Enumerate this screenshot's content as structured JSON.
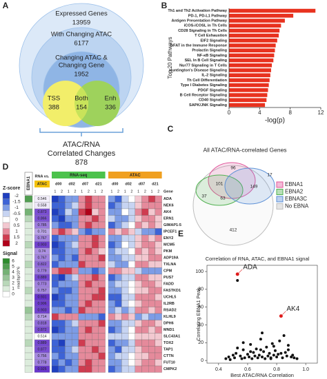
{
  "chart_data": [
    {
      "type": "venn",
      "label": "A",
      "sets": [
        {
          "name": [
            "Expressed Genes"
          ],
          "value": 13959
        },
        {
          "name": [
            "With Changing ATAC"
          ],
          "value": 6177
        },
        {
          "name": [
            "Changing ATAC &",
            "Changing Gene"
          ],
          "value": 1952
        },
        {
          "name": [
            "TSS"
          ],
          "value": 388
        },
        {
          "name": [
            "Both"
          ],
          "value": 154
        },
        {
          "name": [
            "Enh"
          ],
          "value": 336
        }
      ],
      "summary": {
        "name": [
          "ATAC/RNA",
          "Correlated Changes"
        ],
        "value": 878
      },
      "colors": [
        "#dce9f8",
        "#bcd4f1",
        "#8fb5e5",
        "#f2ee6a",
        "#c8e35a",
        "#9ed25c"
      ]
    },
    {
      "type": "bar",
      "orientation": "horizontal",
      "label": "B",
      "categories": [
        "Th1 and Th2 Activation Pathway",
        "PD-1, PD-L1 Pathway",
        "Antigen Presentation Pathway",
        "iCOS-iCOSL in Th Cells",
        "CD28 Signaling in Th Cells",
        "T Cell Exhaustion",
        "EIF2 Signaling",
        "NFAT in the Immune Response",
        "Prolactin Signaling",
        "NF-κB Signaling",
        "SEL In B Cell Signaling",
        "Nur77 Signaling in T Cells",
        "Huntington's Disease Signaling",
        "IL-2 Signaling",
        "Th Cell Differentiation",
        "Type I Diabetes Signaling",
        "PDGF Signaling",
        "B Cell Receptor Signaling",
        "CD40 Signaling",
        "SAPK/JNK Signaling"
      ],
      "values": [
        11.3,
        8.4,
        7.3,
        6.8,
        6.6,
        6.5,
        6.3,
        6.1,
        6.0,
        5.9,
        5.8,
        5.6,
        5.5,
        5.4,
        5.3,
        5.2,
        5.1,
        5.0,
        4.9,
        4.7
      ],
      "color": "#e8321f",
      "xlim": [
        0,
        12
      ],
      "xticks": [
        0,
        4,
        8,
        12
      ],
      "xlabel": "-log(p)",
      "ylabel": "Top 20 Pathways"
    },
    {
      "type": "venn",
      "label": "C",
      "title": "All ATAC/RNA-correlated Genes",
      "regions": [
        96,
        17,
        101,
        149,
        37,
        63,
        412
      ],
      "sets": [
        {
          "name": "EBNA1",
          "color": "#e0559a"
        },
        {
          "name": "EBNA2",
          "color": "#4fb04f"
        },
        {
          "name": "EBNA3C",
          "color": "#5b8fd6"
        },
        {
          "name": "No EBNA",
          "color": "#bdbdbd"
        }
      ]
    },
    {
      "type": "heatmap",
      "label": "D",
      "signal_header": "EBNA1",
      "corr_header": [
        "RNA vs.",
        "ATAC"
      ],
      "groups": [
        "RNA-seq",
        "ATAC"
      ],
      "group_colors": [
        "#4cc24c",
        "#f0a020"
      ],
      "days": [
        "d00",
        "d02",
        "d07",
        "d21"
      ],
      "replicates": [
        "1",
        "2"
      ],
      "gene_header": "Gene",
      "rows": [
        "ADA",
        "NEK6",
        "AK4",
        "ERN1",
        "GIMAP1-5",
        "IPCEF1",
        "ENY2",
        "MCM5",
        "PKM",
        "ADP19A",
        "TXLNA",
        "CPM",
        "PUS7",
        "FADD",
        "FASTKD1",
        "UCHL5",
        "IL2RB",
        "RSAD2",
        "KLHL9",
        "DPH6",
        "MND1",
        "SLC43A1",
        "TOX2",
        "TAP1",
        "CTTN",
        "FUT10",
        "CMPK2"
      ],
      "corr": [
        0.546,
        0.558,
        0.873,
        0.866,
        0.785,
        0.701,
        0.767,
        0.903,
        0.74,
        0.767,
        0.822,
        0.779,
        0.889,
        0.773,
        0.757,
        0.931,
        0.906,
        0.903,
        0.714,
        0.818,
        0.872,
        0.514,
        0.889,
        0.877,
        0.756,
        0.778,
        0.925
      ],
      "signal": [
        5,
        1,
        4,
        2,
        1,
        1,
        1,
        2,
        1,
        1,
        2,
        1,
        1,
        1,
        2,
        1,
        1,
        3,
        2,
        1,
        1,
        1,
        2,
        1,
        1,
        1,
        1
      ],
      "rna": [
        [
          -2,
          -1.5,
          -1,
          -1,
          1,
          1.5,
          1,
          1
        ],
        [
          -1.5,
          -1.5,
          -1,
          -0.5,
          1,
          1.5,
          1,
          1
        ],
        [
          -2,
          -1.5,
          -0.5,
          -1,
          1.5,
          2,
          0.5,
          1
        ],
        [
          -1.5,
          -2,
          -1,
          -1,
          1,
          1,
          1.5,
          1
        ],
        [
          -1,
          -1.5,
          -1.5,
          -1,
          1,
          1.5,
          1,
          1
        ],
        [
          1,
          1.5,
          1,
          0.5,
          -1,
          -1.5,
          -1,
          -1
        ],
        [
          -1.5,
          -1,
          -1,
          -1,
          1,
          1,
          1.5,
          1
        ],
        [
          -2,
          -1.5,
          -1,
          -0.5,
          1,
          1,
          1.5,
          1
        ],
        [
          -1.5,
          -1.5,
          -1,
          -1,
          1,
          1.5,
          1,
          0.5
        ],
        [
          -1,
          -1.5,
          -1,
          -1.5,
          1,
          1,
          1,
          1.5
        ],
        [
          -1.5,
          -1,
          -1,
          -1,
          1.5,
          1,
          1,
          1
        ],
        [
          1,
          1.5,
          1.5,
          1,
          -1,
          -1,
          -1.5,
          -1
        ],
        [
          -1.5,
          -2,
          -1,
          -0.5,
          1,
          1,
          1.5,
          1
        ],
        [
          -1.5,
          -1,
          -1,
          -1,
          1,
          1.5,
          1,
          1
        ],
        [
          -1,
          -1.5,
          -1.5,
          -1,
          1,
          1,
          1,
          1.5
        ],
        [
          -2,
          -1.5,
          -1,
          -1,
          1,
          1,
          1.5,
          1.5
        ],
        [
          -1.5,
          -1.5,
          -1,
          -1,
          1,
          1.5,
          1,
          1
        ],
        [
          -1,
          -1,
          -1.5,
          -1,
          1.5,
          1,
          1,
          1
        ],
        [
          1.5,
          1,
          1,
          1,
          -1,
          -1,
          -1,
          -1.5
        ],
        [
          -1.5,
          -1.5,
          -1,
          -0.5,
          1,
          1,
          1,
          1.5
        ],
        [
          -2,
          -1.5,
          -1,
          -1,
          1,
          1.5,
          1,
          1
        ],
        [
          -1,
          -1,
          -1,
          -1,
          1,
          1,
          1,
          1
        ],
        [
          -1.5,
          -2,
          -1,
          -1,
          1.5,
          1,
          1,
          1
        ],
        [
          -1.5,
          -1.5,
          -1,
          -0.5,
          1,
          1,
          1.5,
          1
        ],
        [
          -1,
          -1.5,
          -1,
          -1,
          1,
          1,
          1,
          1.5
        ],
        [
          -1.5,
          -1,
          -1.5,
          -1,
          1,
          1.5,
          1,
          1
        ],
        [
          -2,
          -1.5,
          -1,
          -1,
          1.5,
          1.5,
          1,
          1
        ]
      ],
      "atac": [
        [
          -1,
          -1.5,
          -0.5,
          0,
          0.5,
          1,
          1.5,
          1
        ],
        [
          -1.5,
          -1,
          -0.5,
          -0.5,
          0.5,
          1,
          1,
          1
        ],
        [
          -1,
          -1,
          0,
          -0.5,
          1,
          1.5,
          0.5,
          1
        ],
        [
          -0.5,
          -1,
          -1,
          -0.5,
          0.5,
          1,
          1,
          0.5
        ],
        [
          -1.5,
          -1,
          -0.5,
          0,
          1,
          0.5,
          1,
          0.5
        ],
        [
          1,
          0.5,
          1,
          0.5,
          -0.5,
          -1,
          -1,
          -1.5
        ],
        [
          -1,
          -1,
          -0.5,
          -0.5,
          0.5,
          1,
          0.5,
          1
        ],
        [
          -1.5,
          -1,
          0,
          -0.5,
          0.5,
          1,
          1,
          0.5
        ],
        [
          -1,
          -0.5,
          -0.5,
          0,
          1,
          0.5,
          1,
          0.5
        ],
        [
          -1,
          -1,
          -0.5,
          -0.5,
          0.5,
          0.5,
          1,
          1
        ],
        [
          -0.5,
          -1,
          -1,
          0,
          1,
          1,
          0.5,
          0.5
        ],
        [
          1,
          1,
          0.5,
          0.5,
          -0.5,
          -1,
          -1,
          -1
        ],
        [
          -1.5,
          -1,
          -0.5,
          -0.5,
          1,
          1,
          0.5,
          0.5
        ],
        [
          -1,
          -0.5,
          -0.5,
          0,
          0.5,
          1,
          1,
          0.5
        ],
        [
          -1,
          -1,
          -0.5,
          0,
          0.5,
          0.5,
          1,
          1
        ],
        [
          -1.5,
          -1.5,
          -0.5,
          -0.5,
          1,
          1,
          1,
          0.5
        ],
        [
          -1,
          -1.5,
          -0.5,
          0,
          0.5,
          1,
          1,
          1
        ],
        [
          -1,
          -0.5,
          -1,
          -0.5,
          1,
          1,
          0.5,
          1
        ],
        [
          1,
          0.5,
          1,
          0.5,
          -1,
          -0.5,
          -1,
          -1
        ],
        [
          -1,
          -1,
          -0.5,
          -0.5,
          0.5,
          1,
          1,
          0.5
        ],
        [
          -1.5,
          -1,
          -0.5,
          0,
          1,
          1,
          0.5,
          1
        ],
        [
          -0.5,
          -0.5,
          -0.5,
          0,
          0.5,
          0.5,
          0.5,
          0.5
        ],
        [
          -1.5,
          -1,
          -1,
          -0.5,
          1,
          1,
          1,
          0.5
        ],
        [
          -1,
          -1.5,
          -0.5,
          -0.5,
          0.5,
          1,
          1,
          1
        ],
        [
          -1,
          -0.5,
          -0.5,
          0,
          0.5,
          0.5,
          1,
          1
        ],
        [
          -1,
          -1,
          -0.5,
          0,
          0.5,
          1,
          1,
          0.5
        ],
        [
          -1.5,
          -1,
          -0.5,
          -0.5,
          1,
          1,
          1,
          1
        ]
      ],
      "zscore": {
        "title": "Z-score",
        "ticks": [
          -2,
          -1.5,
          -1,
          -0.5,
          0,
          0.5,
          1,
          1.5,
          2
        ],
        "colors": [
          "#1f3fbf",
          "#3d63d6",
          "#7d9ce6",
          "#c7d4f2",
          "#ffffff",
          "#f3c8d0",
          "#e58a9b",
          "#cf3c50",
          "#b0001a"
        ]
      },
      "signal_legend": {
        "title": "Signal",
        "unit": "read/bp/10^6",
        "ticks": [
          6,
          5,
          4,
          3,
          2,
          1,
          0
        ],
        "colors": [
          "#ffffff",
          "#2e8b2e"
        ]
      },
      "corr_colors": [
        "#ffffff",
        "#6633cc"
      ]
    },
    {
      "type": "scatter",
      "label": "E",
      "title": "Correlation of RNA, ATAC, and EBNA1 signal",
      "xlabel": "Best ATAC/RNA Correlation",
      "ylabel": "Correlating EBNA1 Peak",
      "x": [
        0.45,
        0.47,
        0.48,
        0.5,
        0.51,
        0.52,
        0.53,
        0.55,
        0.56,
        0.57,
        0.58,
        0.6,
        0.61,
        0.62,
        0.63,
        0.64,
        0.65,
        0.66,
        0.67,
        0.68,
        0.69,
        0.7,
        0.71,
        0.72,
        0.73,
        0.74,
        0.75,
        0.76,
        0.77,
        0.78,
        0.79,
        0.8,
        0.81,
        0.82,
        0.84,
        0.85,
        0.86,
        0.87,
        0.88,
        0.9,
        0.91,
        0.92,
        0.94,
        0.53,
        0.57,
        0.62,
        0.7,
        0.78,
        0.83,
        0.88,
        0.76,
        0.69
      ],
      "values": [
        2,
        4,
        1,
        6,
        3,
        8,
        90,
        5,
        2,
        12,
        3,
        7,
        4,
        18,
        2,
        9,
        5,
        13,
        3,
        6,
        24,
        4,
        10,
        2,
        15,
        5,
        8,
        3,
        19,
        6,
        11,
        4,
        7,
        22,
        3,
        28,
        9,
        5,
        12,
        4,
        6,
        3,
        2,
        14,
        20,
        10,
        31,
        16,
        8,
        17,
        2,
        12
      ],
      "color": "#111111",
      "annotations": [
        {
          "text": "ADA",
          "x": 0.53,
          "y": 97
        },
        {
          "text": "AK4",
          "x": 0.83,
          "y": 50
        }
      ],
      "highlight_color": "#e01b1b",
      "xlim": [
        0.32,
        1.08
      ],
      "xticks": [
        0.4,
        0.6,
        0.8,
        {
          "value": 1,
          "label": "1.0"
        }
      ],
      "ylim": [
        -3,
        107
      ],
      "yticks": [
        0,
        20,
        40,
        60,
        80,
        100
      ]
    }
  ]
}
